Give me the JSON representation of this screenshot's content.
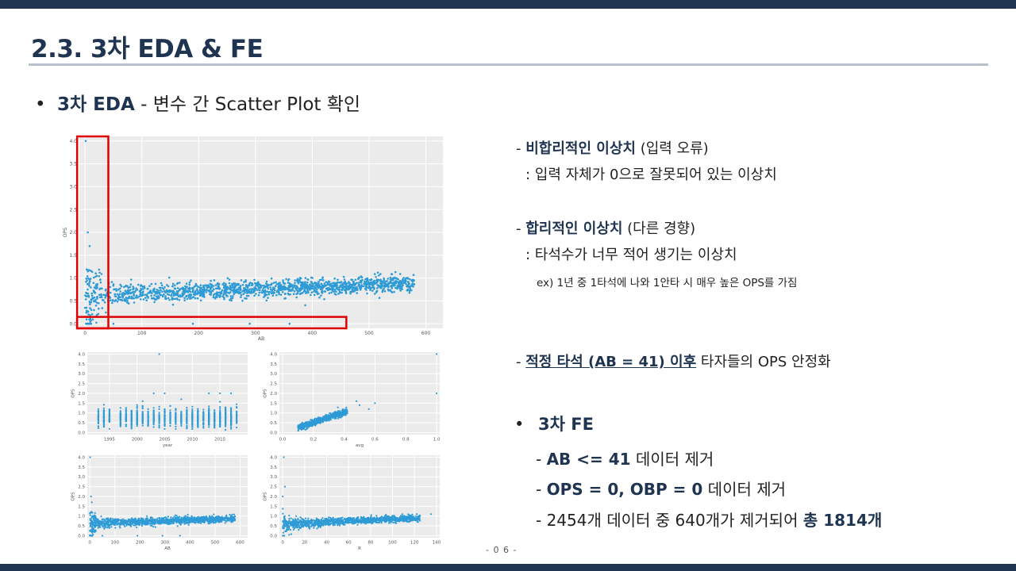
{
  "slide": {
    "title": "2.3. 3차 EDA & FE",
    "page_number": "- 0 6 -",
    "colors": {
      "accent": "#1f3450",
      "rule": "#b7c0cb",
      "marker": "#2e9bd6",
      "highlight_box": "#e00000",
      "plot_bg": "#ebebeb"
    }
  },
  "section": {
    "bullet": "•",
    "heading_bold": "3차 EDA",
    "heading_rest": " - 변수 간 Scatter Plot 확인"
  },
  "notes": {
    "n1_dash": "- ",
    "n1_bold": "비합리적인 이상치",
    "n1_rest": " (입력 오류)",
    "n1_detail": ": 입력 자체가 0으로 잘못되어 있는 이상치",
    "n2_dash": "- ",
    "n2_bold": "합리적인 이상치",
    "n2_rest": " (다른 경향)",
    "n2_detail": ": 타석수가 너무 적어 생기는 이상치",
    "n2_example": "ex) 1년 중 1타석에 나와 1안타 시 매우 높은 OPS를 가짐",
    "n3_dash": "- ",
    "n3_bold": "적정 타석 (AB = 41) 이후",
    "n3_rest": " 타자들의 OPS 안정화"
  },
  "fe": {
    "bullet": "•",
    "title": "3차 FE",
    "items": [
      {
        "dash": "- ",
        "bold": "AB <= 41",
        "rest": " 데이터 제거"
      },
      {
        "dash": "- ",
        "bold": "OPS = 0, OBP = 0",
        "rest": " 데이터 제거"
      },
      {
        "dash": "- ",
        "rest": "2454개 데이터 중 640개가 제거되어 ",
        "bold": "총 1814개"
      }
    ]
  },
  "chart_data": [
    {
      "type": "scatter",
      "xlabel": "AB",
      "ylabel": "OPS",
      "xticks": [
        "0",
        "100",
        "200",
        "300",
        "400",
        "500",
        "600"
      ],
      "yticks": [
        "0.0",
        "0.5",
        "1.0",
        "1.5",
        "2.0",
        "2.5",
        "3.0",
        "3.5",
        "4.0"
      ],
      "xlim": [
        -10,
        630
      ],
      "ylim": [
        -0.1,
        4.1
      ],
      "grid": true,
      "highlight_regions": [
        {
          "x": [
            0,
            41
          ],
          "y": [
            -0.1,
            4.1
          ]
        },
        {
          "x": [
            0,
            460
          ],
          "y": [
            -0.1,
            0.15
          ]
        }
      ]
    },
    {
      "type": "scatter",
      "xlabel": "year",
      "ylabel": "OPS",
      "xticks": [
        "1995",
        "2000",
        "2005",
        "2010",
        "2015"
      ],
      "yticks": [
        "0.0",
        "0.5",
        "1.0",
        "1.5",
        "2.0",
        "2.5",
        "3.0",
        "3.5",
        "4.0"
      ],
      "xlim": [
        1991,
        2020
      ],
      "ylim": [
        -0.1,
        4.1
      ],
      "grid": true
    },
    {
      "type": "scatter",
      "xlabel": "avg",
      "ylabel": "OPS",
      "xticks": [
        "0.0",
        "0.2",
        "0.4",
        "0.6",
        "0.8",
        "1.0"
      ],
      "yticks": [
        "0.0",
        "0.5",
        "1.0",
        "1.5",
        "2.0",
        "2.5",
        "3.0",
        "3.5",
        "4.0"
      ],
      "xlim": [
        -0.02,
        1.02
      ],
      "ylim": [
        -0.1,
        4.1
      ],
      "grid": true
    },
    {
      "type": "scatter",
      "xlabel": "AB",
      "ylabel": "OPS",
      "xticks": [
        "0",
        "100",
        "200",
        "300",
        "400",
        "500",
        "600"
      ],
      "yticks": [
        "0.0",
        "0.5",
        "1.0",
        "1.5",
        "2.0",
        "2.5",
        "3.0",
        "3.5",
        "4.0"
      ],
      "xlim": [
        -10,
        630
      ],
      "ylim": [
        -0.1,
        4.1
      ],
      "grid": true
    },
    {
      "type": "scatter",
      "xlabel": "R",
      "ylabel": "OPS",
      "xticks": [
        "0",
        "20",
        "40",
        "60",
        "80",
        "100",
        "120",
        "140"
      ],
      "yticks": [
        "0.0",
        "0.5",
        "1.0",
        "1.5",
        "2.0",
        "2.5",
        "3.0",
        "3.5",
        "4.0"
      ],
      "xlim": [
        -3,
        143
      ],
      "ylim": [
        -0.1,
        4.1
      ],
      "grid": true
    }
  ]
}
